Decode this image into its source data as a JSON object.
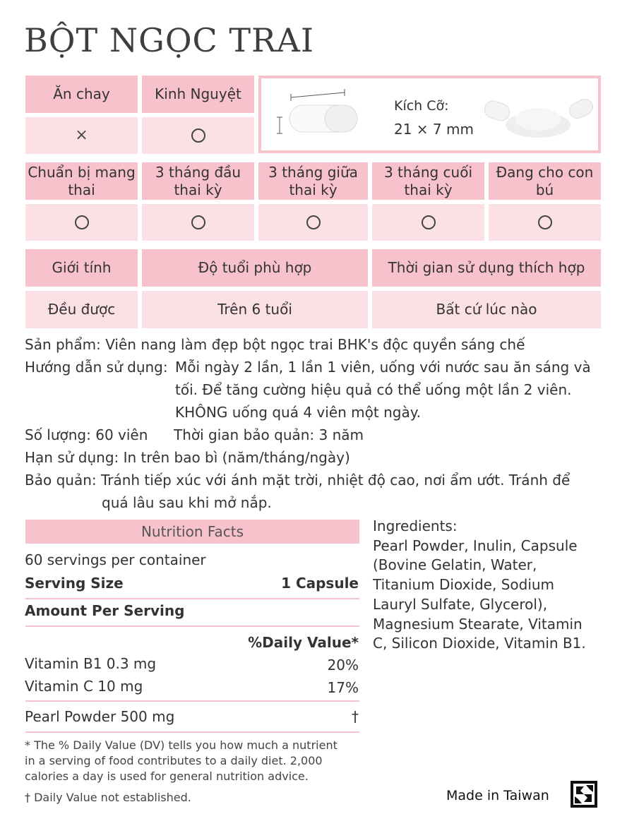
{
  "title": "BỘT NGỌC TRAI",
  "row1": {
    "vegetarian_label": "Ăn chay",
    "vegetarian_value": "×",
    "menstruation_label": "Kinh Nguyệt",
    "size_label": "Kích Cỡ:",
    "size_value": "21 × 7 mm"
  },
  "stages": [
    {
      "label": "Chuẩn bị mang thai"
    },
    {
      "label": "3 tháng đầu thai kỳ"
    },
    {
      "label": "3 tháng giữa thai kỳ"
    },
    {
      "label": "3 tháng cuối thai kỳ"
    },
    {
      "label": "Đang cho con bú"
    }
  ],
  "suitability": {
    "gender_label": "Giới tính",
    "age_label": "Độ tuổi phù hợp",
    "time_label": "Thời gian sử dụng thích hợp",
    "gender_value": "Đều được",
    "age_value": "Trên 6 tuổi",
    "time_value": "Bất cứ lúc nào"
  },
  "info": {
    "product": "Sản phẩm: Viên nang làm đẹp bột ngọc trai BHK's độc quyền sáng chế",
    "usage_label": "Hướng dẫn sử dụng:",
    "usage_line1": "Mỗi ngày 2 lần, 1 lần 1 viên, uống với nước sau ăn sáng và",
    "usage_line2": "tối. Để tăng cường hiệu quả có thể uống một lần 2 viên.",
    "usage_line3": "KHÔNG uống quá 4 viên một ngày.",
    "quantity": "Số lượng: 60 viên",
    "shelf_life": "Thời gian bảo quản: 3 năm",
    "expiry": "Hạn sử dụng: In trên bao bì (năm/tháng/ngày)",
    "storage_line1": "Bảo quản: Tránh tiếp xúc với ánh mặt trời, nhiệt độ cao, nơi ẩm ướt. Tránh để",
    "storage_line2": "quá lâu sau khi mở nắp."
  },
  "nutrition": {
    "header": "Nutrition Facts",
    "servings": "60 servings per container",
    "serving_size_label": "Serving Size",
    "serving_size_value": "1 Capsule",
    "amount_per_serving": "Amount Per Serving",
    "daily_value_header": "%Daily Value*",
    "rows": [
      {
        "name": "Vitamin B1 0.3 mg",
        "dv": "20%"
      },
      {
        "name": "Vitamin C 10 mg",
        "dv": "17%"
      },
      {
        "name": "Pearl Powder 500 mg",
        "dv": "†"
      }
    ],
    "footnote_line1": "* The % Daily Value (DV) tells you how much a nutrient",
    "footnote_line2": "in a serving of food contributes to a daily diet. 2,000",
    "footnote_line3": "calories a day is used for general nutrition advice.",
    "dagger_note": "† Daily Value not established."
  },
  "ingredients": {
    "label": "Ingredients:",
    "lines": [
      "Pearl Powder, Inulin, Capsule",
      "(Bovine Gelatin, Water,",
      "Titanium Dioxide, Sodium",
      "Lauryl Sulfate, Glycerol),",
      "Magnesium Stearate, Vitamin",
      "C, Silicon Dioxide, Vitamin B1."
    ]
  },
  "footer": {
    "made_in": "Made in Taiwan",
    "logo_icon": "recycle-logo-icon"
  }
}
